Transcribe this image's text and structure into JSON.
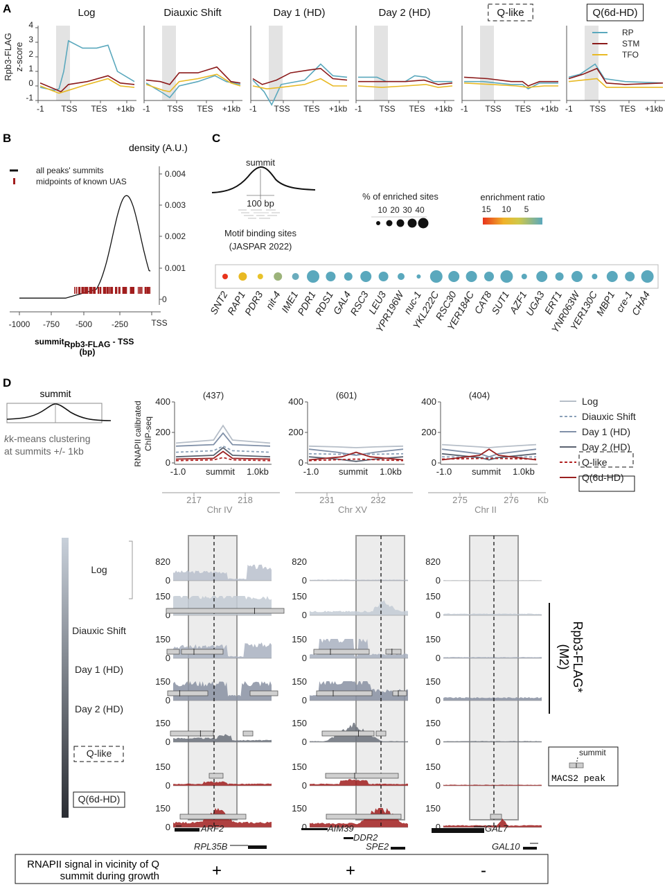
{
  "panelA": {
    "label": "A",
    "ylabel": [
      "Rpb3-FLAG",
      "z-score"
    ],
    "yticks": [
      "4",
      "3",
      "2",
      "1",
      "0",
      "-1"
    ],
    "xticks": [
      "-1",
      "TSS",
      "TES",
      "+1kb"
    ],
    "legend": [
      {
        "name": "RP",
        "color": "#5aa8bd"
      },
      {
        "name": "STM",
        "color": "#8b1a1a"
      },
      {
        "name": "TFO",
        "color": "#e8b923"
      }
    ],
    "conditions": [
      {
        "title": "Log",
        "box": "none"
      },
      {
        "title": "Diauxic Shift",
        "box": "none"
      },
      {
        "title": "Day 1 (HD)",
        "box": "none"
      },
      {
        "title": "Day 2 (HD)",
        "box": "none"
      },
      {
        "title": "Q-like",
        "box": "dashed"
      },
      {
        "title": "Q(6d-HD)",
        "box": "solid"
      }
    ]
  },
  "panelB": {
    "label": "B",
    "density_label": "density (A.U.)",
    "legend": [
      "all peaks' summits",
      "midpoints of known UAS"
    ],
    "yticks": [
      "0.004",
      "0.003",
      "0.002",
      "0.001",
      "0"
    ],
    "xticks": [
      "-1000",
      "-750",
      "-500",
      "-250",
      "TSS"
    ],
    "xlabel_main": "summit",
    "xlabel_sub": "Rpb3-FLAG",
    "xlabel_tail": " - TSS",
    "xunit": "(bp)"
  },
  "panelC": {
    "label": "C",
    "summit": "summit",
    "bp": "100 bp",
    "motif_label": "Motif binding sites",
    "jaspar": "(JASPAR 2022)",
    "size_title": "% of enriched sites",
    "size_ticks": [
      "10",
      "20",
      "30",
      "40"
    ],
    "ratio_title": "enrichment ratio",
    "ratio_ticks": [
      "15",
      "10",
      "5"
    ],
    "motifs": [
      {
        "name": "SNT2",
        "size": 4,
        "color": "#e8341c"
      },
      {
        "name": "RAP1",
        "size": 6,
        "color": "#e8b923"
      },
      {
        "name": "PDR3",
        "size": 4,
        "color": "#e8c22a"
      },
      {
        "name": "nit-4",
        "size": 6,
        "color": "#9cb37a"
      },
      {
        "name": "IME1",
        "size": 5,
        "color": "#6aacbd"
      },
      {
        "name": "PDR1",
        "size": 9,
        "color": "#5aa8bd"
      },
      {
        "name": "RDS1",
        "size": 7,
        "color": "#5aa8bd"
      },
      {
        "name": "GAL4",
        "size": 6,
        "color": "#5aa8bd"
      },
      {
        "name": "RSC3",
        "size": 8,
        "color": "#5aa8bd"
      },
      {
        "name": "LEU3",
        "size": 7,
        "color": "#5aa8bd"
      },
      {
        "name": "YPR196W",
        "size": 5,
        "color": "#5aa8bd"
      },
      {
        "name": "nuc-1",
        "size": 3,
        "color": "#5aa8bd"
      },
      {
        "name": "YKL222C",
        "size": 9,
        "color": "#5aa8bd"
      },
      {
        "name": "RSC30",
        "size": 8,
        "color": "#5aa8bd"
      },
      {
        "name": "YER184C",
        "size": 8,
        "color": "#5aa8bd"
      },
      {
        "name": "CAT8",
        "size": 7,
        "color": "#5aa8bd"
      },
      {
        "name": "SUT1",
        "size": 9,
        "color": "#5aa8bd"
      },
      {
        "name": "AZF1",
        "size": 4,
        "color": "#5aa8bd"
      },
      {
        "name": "UGA3",
        "size": 8,
        "color": "#5aa8bd"
      },
      {
        "name": "ERT1",
        "size": 6,
        "color": "#5aa8bd"
      },
      {
        "name": "YNR063W",
        "size": 8,
        "color": "#5aa8bd"
      },
      {
        "name": "YER130C",
        "size": 4,
        "color": "#5aa8bd"
      },
      {
        "name": "MBP1",
        "size": 8,
        "color": "#5aa8bd"
      },
      {
        "name": "cre-1",
        "size": 7,
        "color": "#5aa8bd"
      },
      {
        "name": "CHA4",
        "size": 9,
        "color": "#5aa8bd"
      }
    ]
  },
  "panelD": {
    "label": "D",
    "summit": "summit",
    "kmeans_1": "k-means clustering",
    "kmeans_k": "k",
    "kmeans_2": "at summits +/- 1kb",
    "ylabel": [
      "RNAPII calibrated",
      "ChIP-seq"
    ],
    "clusters": [
      {
        "n": "(437)",
        "chr": "Chr IV",
        "t1": "217",
        "t2": "218"
      },
      {
        "n": "(601)",
        "chr": "Chr XV",
        "t1": "231",
        "t2": "232"
      },
      {
        "n": "(404)",
        "chr": "Chr II",
        "t1": "275",
        "t2": "276"
      }
    ],
    "cluster_yticks": [
      "400",
      "200",
      "0"
    ],
    "cluster_xticks": [
      "-1.0",
      "summit",
      "1.0kb"
    ],
    "kb": "Kb",
    "legend": [
      {
        "name": "Log",
        "color": "#b6bec8",
        "dash": "none"
      },
      {
        "name": "Diauxic Shift",
        "color": "#8aa0b8",
        "dash": "dashed"
      },
      {
        "name": "Day 1 (HD)",
        "color": "#8090a8",
        "dash": "none"
      },
      {
        "name": "Day 2 (HD)",
        "color": "#5a6270",
        "dash": "none"
      },
      {
        "name": "Q-like",
        "color": "#b02020",
        "dash": "dashed"
      },
      {
        "name": "Q(6d-HD)",
        "color": "#9a2020",
        "dash": "none"
      }
    ],
    "track_labels": [
      "Log",
      "Diauxic Shift",
      "Day 1 (HD)",
      "Day 2 (HD)",
      "Q-like",
      "Q(6d-HD)"
    ],
    "track_yticks": [
      [
        "820",
        "0"
      ],
      [
        "150",
        "0"
      ],
      [
        "150",
        "0"
      ],
      [
        "150",
        "0"
      ],
      [
        "150",
        "0"
      ],
      [
        "150",
        "0"
      ],
      [
        "150",
        "0"
      ]
    ],
    "rpb3_1": "Rpb3-FLAG*",
    "rpb3_2": "(M2)",
    "macs_summit": "summit",
    "macs_peak": "MACS2 peak",
    "genes": [
      "ARF2",
      "RPL35B",
      "AIM39",
      "DDR2",
      "SPE2",
      "GAL7",
      "GAL10"
    ],
    "signal_label_1": "RNAPII signal in vicinity of Q",
    "signal_label_2": "summit during growth",
    "signals": [
      "+",
      "+",
      "-"
    ]
  }
}
